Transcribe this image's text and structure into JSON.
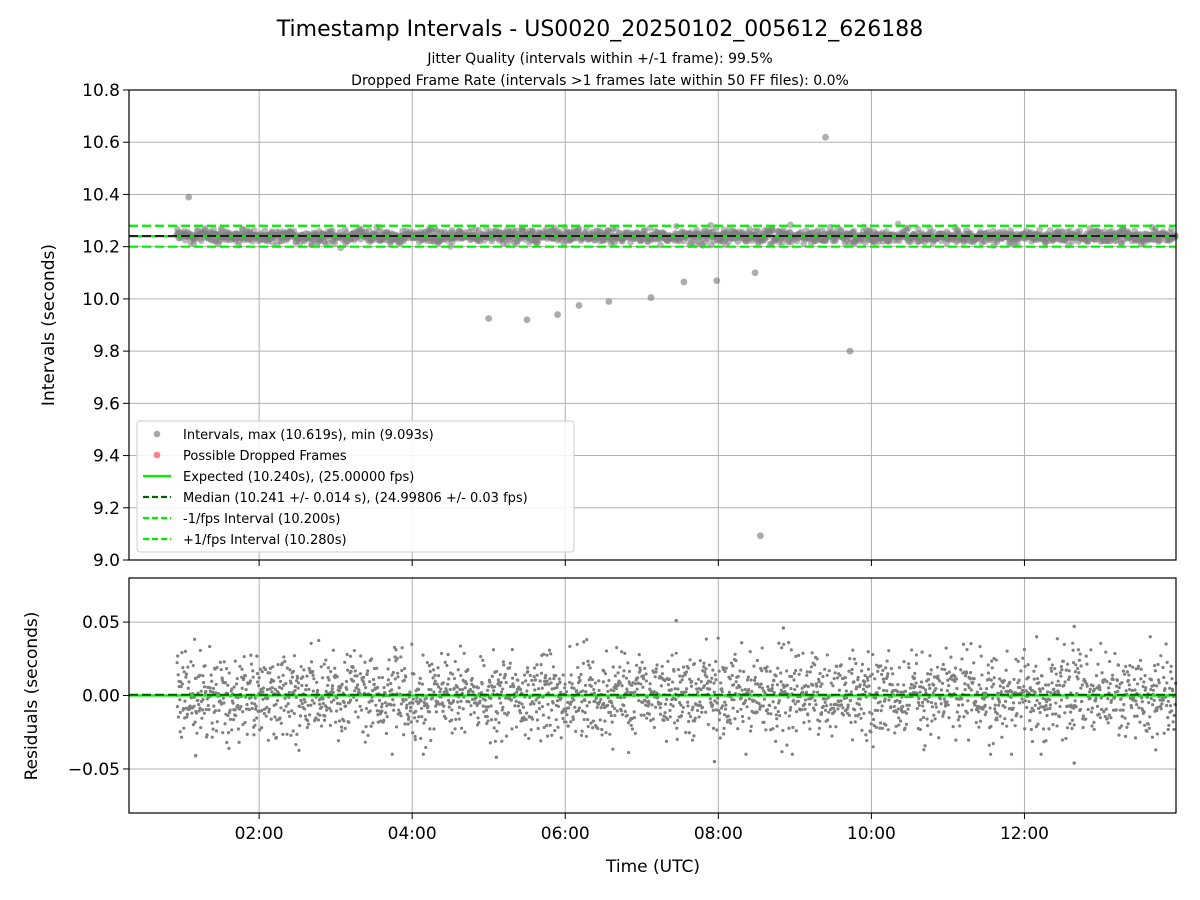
{
  "chart_data": {
    "type": "scatter",
    "title": "Timestamp Intervals - US0020_20250102_005612_626188",
    "subtitles": [
      "Jitter Quality (intervals within +/-1 frame): 99.5%",
      "Dropped Frame Rate (intervals >1 frames late within 50 FF files): 0.0%"
    ],
    "x_label": "Time (UTC)",
    "x_range_hours": [
      0.3,
      13.98
    ],
    "x_ticks": [
      {
        "value": 2,
        "label": "02:00"
      },
      {
        "value": 4,
        "label": "04:00"
      },
      {
        "value": 6,
        "label": "06:00"
      },
      {
        "value": 8,
        "label": "08:00"
      },
      {
        "value": 10,
        "label": "10:00"
      },
      {
        "value": 12,
        "label": "12:00"
      }
    ],
    "grid": true,
    "top_panel": {
      "y_label": "Intervals (seconds)",
      "y_range": [
        9.0,
        10.8
      ],
      "y_ticks": [
        "9.0",
        "9.2",
        "9.4",
        "9.6",
        "9.8",
        "10.0",
        "10.2",
        "10.4",
        "10.6",
        "10.8"
      ],
      "expected": 10.24,
      "median": 10.241,
      "lower_bound": 10.2,
      "upper_bound": 10.28,
      "band_x_range": [
        0.92,
        13.98
      ],
      "band_spread": 0.014,
      "outliers": [
        {
          "x": 1.08,
          "y": 10.39
        },
        {
          "x": 5.0,
          "y": 9.925
        },
        {
          "x": 5.5,
          "y": 9.92
        },
        {
          "x": 5.9,
          "y": 9.94
        },
        {
          "x": 6.18,
          "y": 9.975
        },
        {
          "x": 6.57,
          "y": 9.99
        },
        {
          "x": 7.12,
          "y": 10.005
        },
        {
          "x": 7.55,
          "y": 10.065
        },
        {
          "x": 7.98,
          "y": 10.07
        },
        {
          "x": 8.48,
          "y": 10.1
        },
        {
          "x": 8.55,
          "y": 9.093
        },
        {
          "x": 9.4,
          "y": 10.619
        },
        {
          "x": 9.72,
          "y": 9.8
        }
      ],
      "legend_placement": "lower-left",
      "legend": [
        {
          "label": "Intervals, max (10.619s), min (9.093s)",
          "kind": "dot",
          "color": "#8a8a8a"
        },
        {
          "label": "Possible Dropped Frames",
          "kind": "dot",
          "color": "#ff5555"
        },
        {
          "label": "Expected (10.240s), (25.00000 fps)",
          "kind": "solid",
          "color": "#00ee00"
        },
        {
          "label": "Median (10.241 +/- 0.014 s), (24.99806 +/- 0.03 fps)",
          "kind": "dashed",
          "color": "#006400"
        },
        {
          "label": "-1/fps Interval (10.200s)",
          "kind": "dashed",
          "color": "#00ee00"
        },
        {
          "label": "+1/fps Interval (10.280s)",
          "kind": "dashed",
          "color": "#00ee00"
        }
      ]
    },
    "bottom_panel": {
      "y_label": "Residuals (seconds)",
      "y_range": [
        -0.08,
        0.08
      ],
      "y_ticks": [
        {
          "value": 0.05,
          "label": "0.05"
        },
        {
          "value": 0.0,
          "label": "0.00"
        },
        {
          "value": -0.05,
          "label": "−0.05"
        }
      ],
      "residual_spread": 0.014,
      "notable_residuals": [
        {
          "x": 7.45,
          "y": 0.051
        },
        {
          "x": 12.65,
          "y": 0.047
        },
        {
          "x": 8.85,
          "y": 0.046
        },
        {
          "x": 12.65,
          "y": -0.046
        },
        {
          "x": 7.95,
          "y": -0.045
        },
        {
          "x": 5.1,
          "y": -0.042
        },
        {
          "x": 1.17,
          "y": -0.041
        }
      ]
    },
    "colors": {
      "points": "#808080",
      "expected": "#00ee00",
      "median": "#006400",
      "grid": "#b0b0b0"
    }
  }
}
